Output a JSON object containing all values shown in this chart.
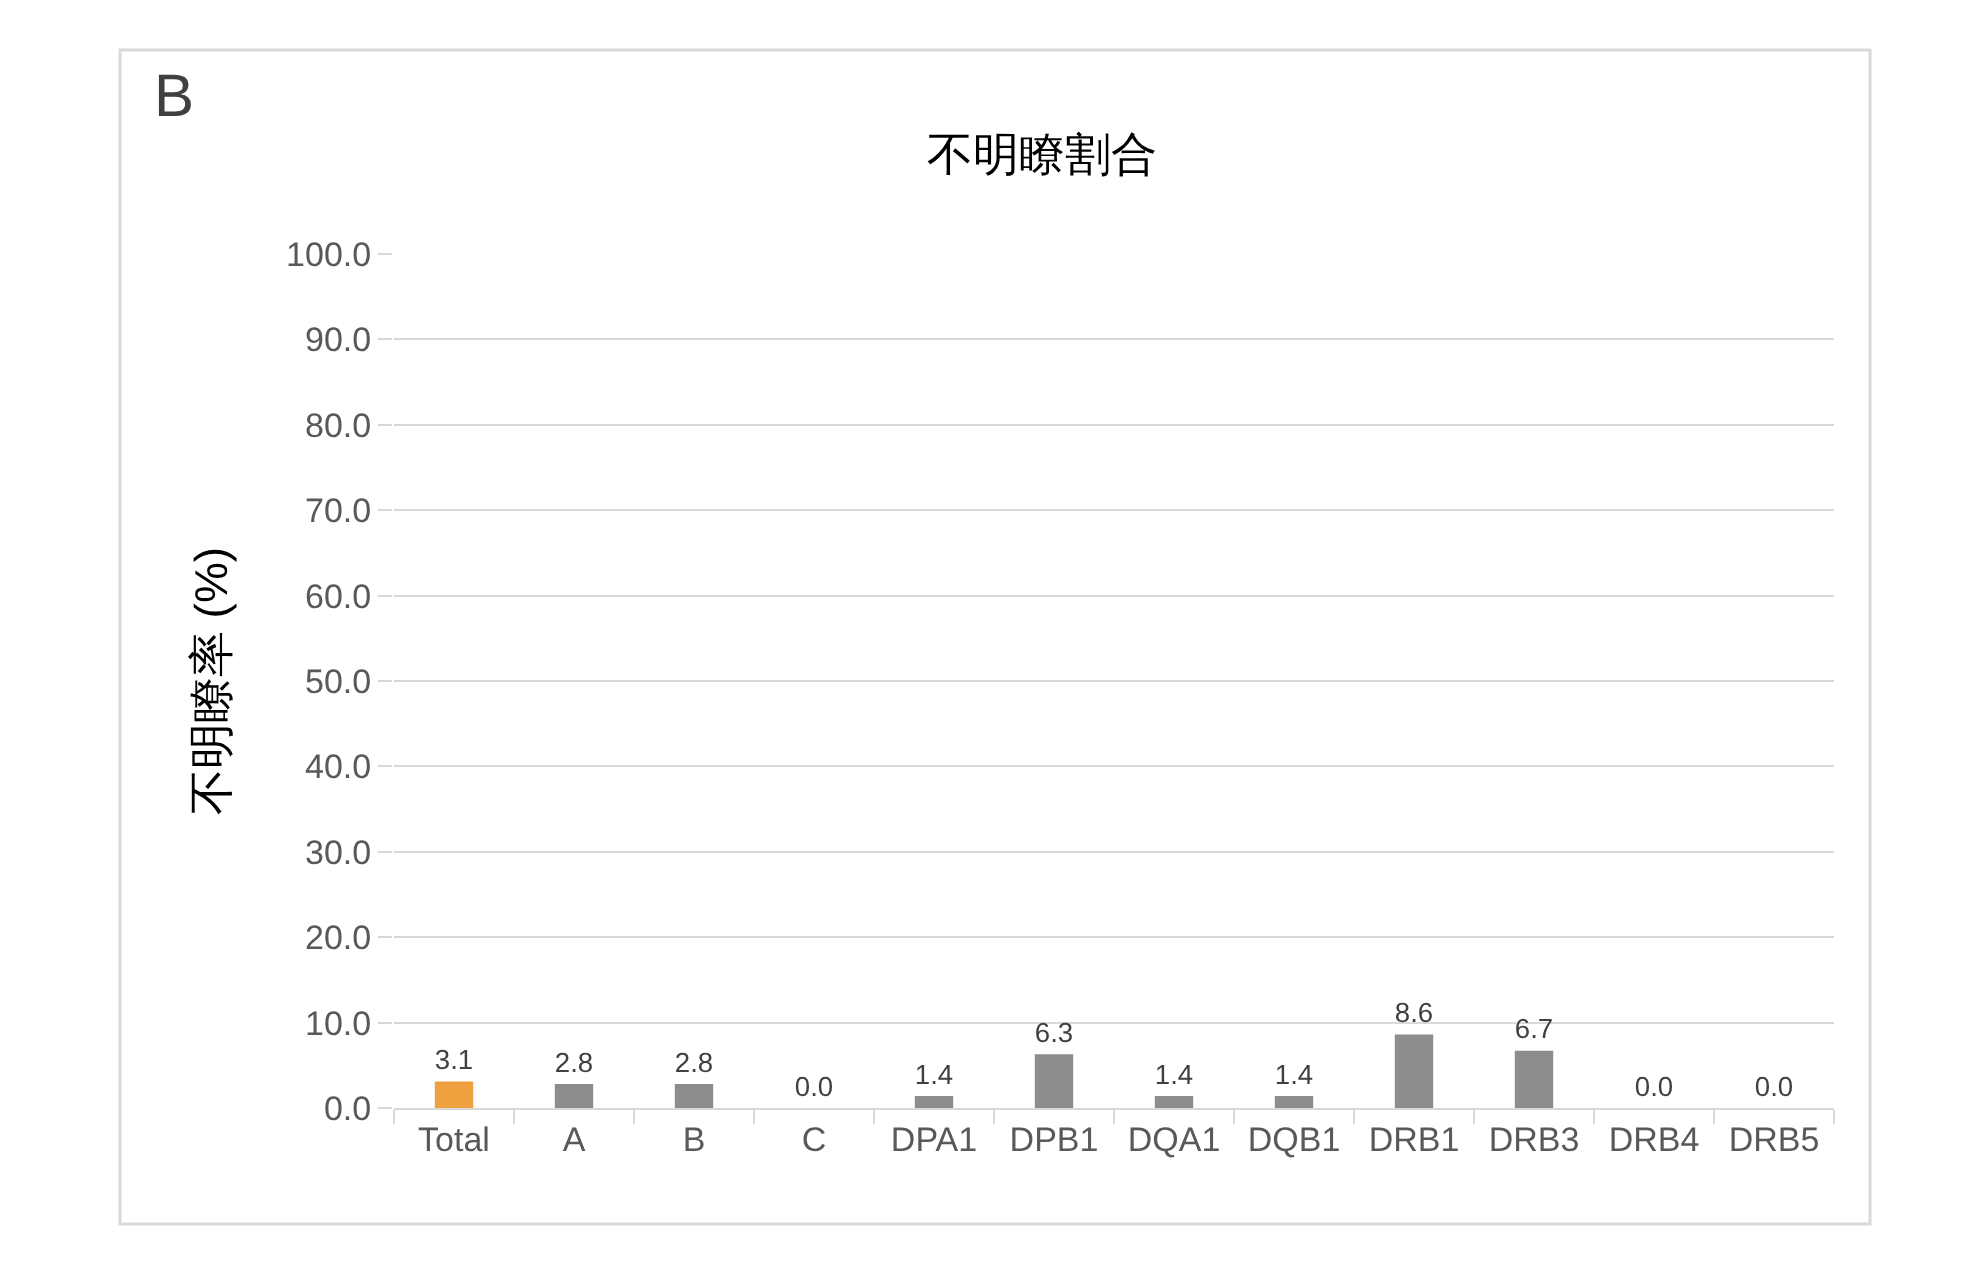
{
  "chart_data": {
    "type": "bar",
    "title": "不明瞭割合",
    "ylabel": "不明瞭率 (%)",
    "annotations": [
      "B"
    ],
    "categories": [
      "Total",
      "A",
      "B",
      "C",
      "DPA1",
      "DPB1",
      "DQA1",
      "DQB1",
      "DRB1",
      "DRB3",
      "DRB4",
      "DRB5"
    ],
    "values": [
      3.1,
      2.8,
      2.8,
      0.0,
      1.4,
      6.3,
      1.4,
      1.4,
      8.6,
      6.7,
      0.0,
      0.0
    ],
    "colors": [
      "#f0a13f",
      "#8c8c8c",
      "#8c8c8c",
      "#8c8c8c",
      "#8c8c8c",
      "#8c8c8c",
      "#8c8c8c",
      "#8c8c8c",
      "#8c8c8c",
      "#8c8c8c",
      "#8c8c8c",
      "#8c8c8c"
    ],
    "value_labels": [
      "3.1",
      "2.8",
      "2.8",
      "0.0",
      "1.4",
      "6.3",
      "1.4",
      "1.4",
      "8.6",
      "6.7",
      "0.0",
      "0.0"
    ],
    "ylim": [
      0,
      100
    ],
    "yticks": [
      {
        "value": 0,
        "label": "0.0"
      },
      {
        "value": 10,
        "label": "10.0"
      },
      {
        "value": 20,
        "label": "20.0"
      },
      {
        "value": 30,
        "label": "30.0"
      },
      {
        "value": 40,
        "label": "40.0"
      },
      {
        "value": 50,
        "label": "50.0"
      },
      {
        "value": 60,
        "label": "60.0"
      },
      {
        "value": 70,
        "label": "70.0"
      },
      {
        "value": 80,
        "label": "80.0"
      },
      {
        "value": 90,
        "label": "90.0"
      },
      {
        "value": 100,
        "label": "100.0"
      }
    ],
    "grid": "y"
  }
}
